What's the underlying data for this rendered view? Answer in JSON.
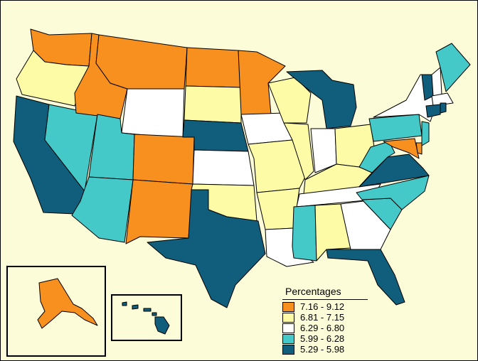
{
  "legend": {
    "title": "Percentages",
    "classes": [
      {
        "label": "7.16 - 9.12",
        "color": "#f7901e"
      },
      {
        "label": "6.81 - 7.15",
        "color": "#fdfba6"
      },
      {
        "label": "6.29 - 6.80",
        "color": "#ffffff"
      },
      {
        "label": "5.99 - 6.28",
        "color": "#45c8c8"
      },
      {
        "label": "5.29 - 5.98",
        "color": "#105e7c"
      }
    ]
  },
  "states": {
    "WA": 0,
    "OR": 1,
    "CA": 4,
    "NV": 3,
    "ID": 0,
    "MT": 0,
    "WY": 2,
    "UT": 3,
    "AZ": 3,
    "CO": 0,
    "NM": 0,
    "ND": 0,
    "SD": 1,
    "NE": 4,
    "KS": 2,
    "OK": 1,
    "TX": 4,
    "MN": 0,
    "IA": 2,
    "MO": 1,
    "AR": 1,
    "LA": 2,
    "WI": 1,
    "IL": 1,
    "MI": 4,
    "IN": 2,
    "OH": 1,
    "KY": 1,
    "TN": 2,
    "MS": 3,
    "AL": 1,
    "GA": 2,
    "FL": 4,
    "SC": 3,
    "NC": 3,
    "VA": 4,
    "WV": 3,
    "MD": 0,
    "DE": 0,
    "NJ": 3,
    "PA": 3,
    "NY": 2,
    "VT": 4,
    "NH": 2,
    "ME": 3,
    "MA": 2,
    "CT": 4,
    "RI": 4,
    "AK": 0,
    "HI": 4
  }
}
